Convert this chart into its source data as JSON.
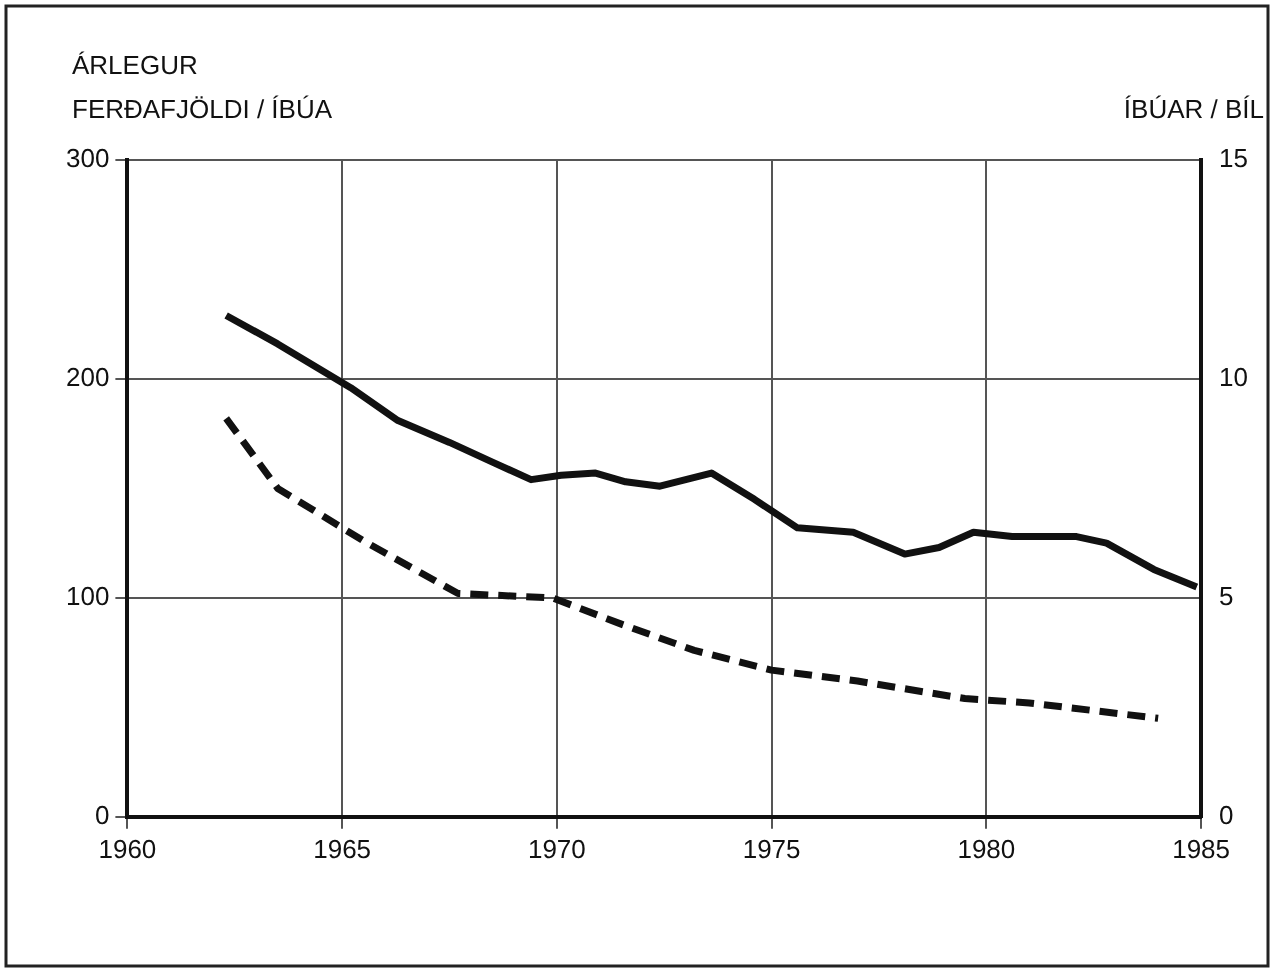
{
  "chart_data": {
    "type": "line",
    "ylabel": "ÁRLEGUR FERÐAFJÖLDI / ÍBÚA",
    "y2label": "ÍBÚAR / BÍL",
    "xlim": [
      1960,
      1985
    ],
    "xticks": [
      1960,
      1965,
      1970,
      1975,
      1980,
      1985
    ],
    "ylim": [
      0,
      300
    ],
    "yticks": [
      0,
      100,
      200,
      300
    ],
    "y2lim": [
      0,
      15
    ],
    "y2ticks": [
      0,
      5,
      10,
      15
    ],
    "grid": true,
    "legend": false,
    "marker": "none",
    "series": [
      {
        "color": "#111111",
        "line_style": "solid",
        "x": [
          1962.3,
          1963.5,
          1965.2,
          1966.3,
          1967.5,
          1968.5,
          1969.4,
          1970.1,
          1970.9,
          1971.6,
          1972.4,
          1973.6,
          1974.6,
          1975.6,
          1976.9,
          1978.1,
          1978.9,
          1979.7,
          1980.6,
          1982.1,
          1982.8,
          1983.9,
          1984.9
        ],
        "values": [
          229,
          216,
          196,
          181,
          171,
          162,
          154,
          156,
          157,
          153,
          151,
          157,
          145,
          132,
          130,
          120,
          123,
          130,
          128,
          128,
          125,
          113,
          105
        ]
      },
      {
        "color": "#111111",
        "line_style": "dashed",
        "axis": "y2",
        "x": [
          1962.3,
          1963.5,
          1965.5,
          1967.7,
          1969.9,
          1971.5,
          1973.2,
          1975,
          1977,
          1979.5,
          1981,
          1984
        ],
        "values": [
          9.1,
          7.5,
          6.3,
          5.1,
          5.0,
          4.4,
          3.8,
          3.35,
          3.1,
          2.7,
          2.6,
          2.25
        ]
      }
    ]
  }
}
